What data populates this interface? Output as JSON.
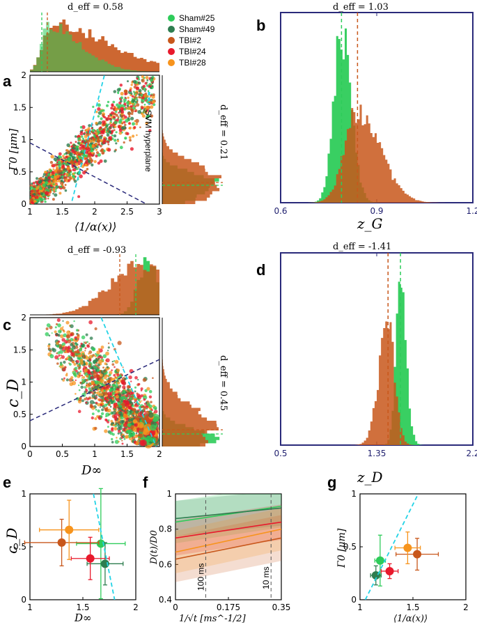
{
  "panel_labels": {
    "a": "a",
    "b": "b",
    "c": "c",
    "d": "d",
    "e": "e",
    "f": "f",
    "g": "g"
  },
  "legend": [
    {
      "name": "Sham#25",
      "color": "#2ecc5a"
    },
    {
      "name": "Sham#49",
      "color": "#2e7d4f"
    },
    {
      "name": "TBI#2",
      "color": "#c8571b"
    },
    {
      "name": "TBI#24",
      "color": "#e8192c"
    },
    {
      "name": "TBI#28",
      "color": "#f7941d"
    }
  ],
  "colors": {
    "sham": "#2ecc5a",
    "tbi": "#c8571b",
    "dash_line": "#2a2a7a",
    "svm": "#22d3e6",
    "frame_blue": "#2a2a7a"
  },
  "chart_data": [
    {
      "id": "a",
      "type": "scatter",
      "xlabel": "⟨1/α(x)⟩",
      "ylabel": "Γ0 [μm]",
      "xlim": [
        1,
        3
      ],
      "ylim": [
        0,
        2
      ],
      "xticks": [
        "1",
        "1.5",
        "2",
        "2.5",
        "3"
      ],
      "yticks": [
        "0",
        "0.5",
        "1",
        "1.5",
        "2"
      ],
      "top_deff": "d_eff = 0.58",
      "right_deff": "d_eff = 0.21",
      "annotation": "SVM hyperplane",
      "svm_line": [
        [
          1.65,
          0.05
        ],
        [
          2.15,
          2.0
        ]
      ],
      "dashed_line": [
        [
          1.0,
          0.95
        ],
        [
          2.8,
          0.0
        ]
      ]
    },
    {
      "id": "b",
      "type": "bar",
      "subtype": "histogram",
      "xlabel": "z_G",
      "xlim": [
        0.6,
        1.2
      ],
      "xticks": [
        "0.6",
        "0.9",
        "1.2"
      ],
      "deff": "d_eff = 1.03",
      "mean_sham": 0.79,
      "mean_tbi": 0.84
    },
    {
      "id": "c",
      "type": "scatter",
      "xlabel": "D∞",
      "ylabel": "c_D",
      "xlim": [
        0,
        2
      ],
      "ylim": [
        0,
        2
      ],
      "xticks": [
        "0",
        "0.5",
        "1",
        "1.5",
        "2"
      ],
      "yticks": [
        "0",
        "0.5",
        "1",
        "1.5",
        "2"
      ],
      "top_deff": "d_eff = -0.93",
      "right_deff": "d_eff = 0.45",
      "svm_line": [
        [
          1.1,
          2.0
        ],
        [
          1.95,
          0.0
        ]
      ],
      "dashed_line": [
        [
          0.0,
          0.4
        ],
        [
          2.0,
          1.35
        ]
      ]
    },
    {
      "id": "d",
      "type": "bar",
      "subtype": "histogram",
      "xlabel": "z_D",
      "xlim": [
        0.5,
        2.2
      ],
      "xticks": [
        "0.5",
        "1.35",
        "2.2"
      ],
      "deff": "d_eff = -1.41",
      "mean_sham": 1.56,
      "mean_tbi": 1.45
    },
    {
      "id": "e",
      "type": "scatter",
      "subtype": "errorbar",
      "xlabel": "D∞",
      "ylabel": "c_D",
      "xlim": [
        1,
        2
      ],
      "ylim": [
        0,
        1
      ],
      "xticks": [
        "1",
        "1.5",
        "2"
      ],
      "yticks": [
        "0",
        "0.5",
        "1"
      ],
      "points": [
        {
          "name": "Sham#25",
          "x": 1.67,
          "y": 0.53,
          "xerr": 0.23,
          "yerr": 0.52
        },
        {
          "name": "Sham#49",
          "x": 1.71,
          "y": 0.34,
          "xerr": 0.17,
          "yerr": 0.2
        },
        {
          "name": "TBI#2",
          "x": 1.3,
          "y": 0.54,
          "xerr": 0.35,
          "yerr": 0.22
        },
        {
          "name": "TBI#24",
          "x": 1.57,
          "y": 0.39,
          "xerr": 0.18,
          "yerr": 0.2
        },
        {
          "name": "TBI#28",
          "x": 1.37,
          "y": 0.66,
          "xerr": 0.28,
          "yerr": 0.28
        }
      ],
      "svm_line": [
        [
          1.6,
          1.0
        ],
        [
          1.8,
          0.0
        ]
      ]
    },
    {
      "id": "f",
      "type": "line",
      "xlabel": "1/√t [ms^-1/2]",
      "ylabel": "D(t)/D0",
      "xlim": [
        0,
        0.35
      ],
      "ylim": [
        0.4,
        1.0
      ],
      "xticks": [
        "0",
        "0.175",
        "0.35"
      ],
      "yticks": [
        "0.4",
        "0.6",
        "0.8",
        "1"
      ],
      "vlines": [
        {
          "x": 0.1,
          "label": "100 ms"
        },
        {
          "x": 0.316,
          "label": "10 ms"
        }
      ],
      "series": [
        {
          "name": "Sham#25",
          "y0": 0.84,
          "y1": 0.93,
          "band": 0.12
        },
        {
          "name": "Sham#49",
          "y0": 0.86,
          "y1": 0.92,
          "band": 0.1
        },
        {
          "name": "TBI#2",
          "y0": 0.63,
          "y1": 0.75,
          "band": 0.13
        },
        {
          "name": "TBI#24",
          "y0": 0.75,
          "y1": 0.84,
          "band": 0.1
        },
        {
          "name": "TBI#28",
          "y0": 0.67,
          "y1": 0.8,
          "band": 0.12
        }
      ]
    },
    {
      "id": "g",
      "type": "scatter",
      "subtype": "errorbar",
      "xlabel": "⟨1/α(x)⟩",
      "ylabel": "Γ0 [μm]",
      "xlim": [
        1,
        2
      ],
      "ylim": [
        0,
        1
      ],
      "xticks": [
        "1",
        "1.5",
        "2"
      ],
      "yticks": [
        "0",
        "0.5",
        "1"
      ],
      "points": [
        {
          "name": "Sham#25",
          "x": 1.19,
          "y": 0.37,
          "xerr": 0.05,
          "yerr": 0.24
        },
        {
          "name": "Sham#49",
          "x": 1.15,
          "y": 0.23,
          "xerr": 0.05,
          "yerr": 0.09
        },
        {
          "name": "TBI#2",
          "x": 1.54,
          "y": 0.43,
          "xerr": 0.2,
          "yerr": 0.15
        },
        {
          "name": "TBI#24",
          "x": 1.28,
          "y": 0.27,
          "xerr": 0.08,
          "yerr": 0.07
        },
        {
          "name": "TBI#28",
          "x": 1.45,
          "y": 0.49,
          "xerr": 0.12,
          "yerr": 0.15
        }
      ],
      "svm_line": [
        [
          1.05,
          0.0
        ],
        [
          1.55,
          1.0
        ]
      ]
    }
  ]
}
